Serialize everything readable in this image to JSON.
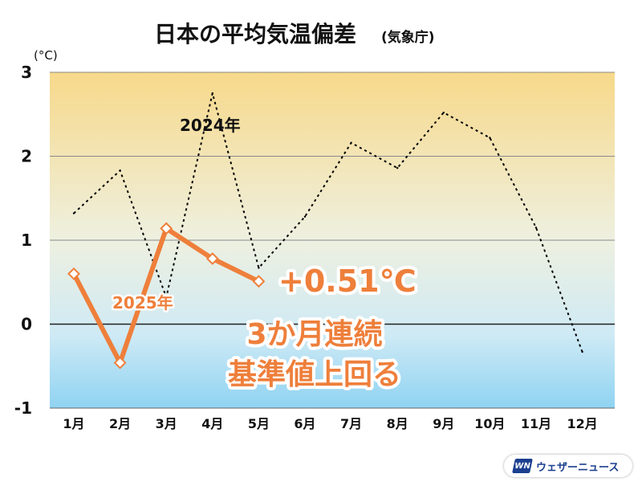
{
  "chart_data": {
    "type": "line",
    "title": "日本の平均気温偏差",
    "subtitle": "(気象庁)",
    "ylabel": "(°C)",
    "xlabel": "",
    "ylim": [
      -1,
      3
    ],
    "yticks": [
      "3",
      "2",
      "1",
      "0",
      "-1"
    ],
    "ytick_values": [
      3,
      2,
      1,
      0,
      -1
    ],
    "categories": [
      "1月",
      "2月",
      "3月",
      "4月",
      "5月",
      "6月",
      "7月",
      "8月",
      "9月",
      "10月",
      "11月",
      "12月"
    ],
    "grid": true,
    "series": [
      {
        "name": "2024年",
        "style": "dotted",
        "color": "#000000",
        "values": [
          1.32,
          1.83,
          0.32,
          2.75,
          0.67,
          1.28,
          2.16,
          1.86,
          2.52,
          2.22,
          1.15,
          -0.33
        ]
      },
      {
        "name": "2025年",
        "style": "solid-markers",
        "color": "#ee7f3b",
        "values": [
          0.6,
          -0.46,
          1.14,
          0.78,
          0.51,
          null,
          null,
          null,
          null,
          null,
          null,
          null
        ]
      }
    ],
    "annotations": {
      "value": "+0.51℃",
      "line1": "3か月連続",
      "line2": "基準値上回る"
    }
  },
  "logo": {
    "mark": "WN",
    "text": "ウェザーニュース"
  }
}
